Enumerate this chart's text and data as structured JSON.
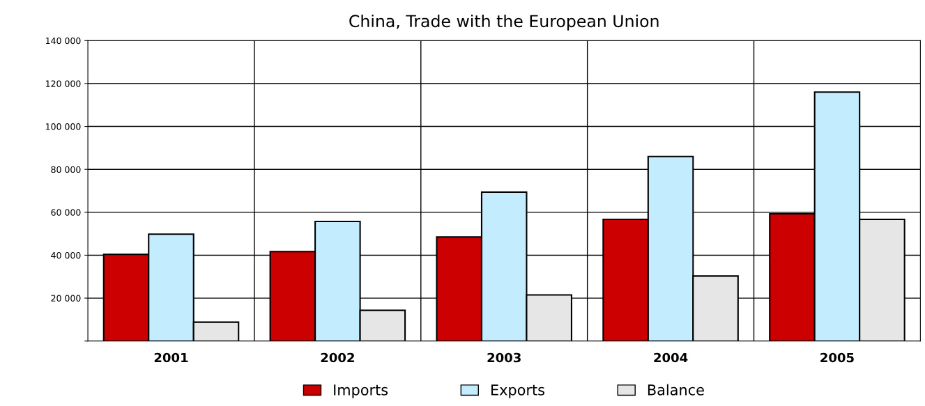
{
  "chart_data": {
    "type": "bar",
    "title": "China, Trade with the European Union",
    "categories": [
      "2001",
      "2002",
      "2003",
      "2004",
      "2005"
    ],
    "series": [
      {
        "name": "Imports",
        "color": "#cc0000",
        "values": [
          40400,
          41700,
          48500,
          56700,
          59300
        ]
      },
      {
        "name": "Exports",
        "color": "#c4ecff",
        "values": [
          49800,
          55700,
          69400,
          86000,
          116000
        ]
      },
      {
        "name": "Balance",
        "color": "#e6e6e6",
        "values": [
          8800,
          14300,
          21500,
          30300,
          56700
        ]
      }
    ],
    "ylim": [
      0,
      140000
    ],
    "yticks": [
      {
        "value": 0,
        "label": null
      },
      {
        "value": 20000,
        "label": "20 000"
      },
      {
        "value": 40000,
        "label": "40 000"
      },
      {
        "value": 60000,
        "label": "60 000"
      },
      {
        "value": 80000,
        "label": "80 000"
      },
      {
        "value": 100000,
        "label": "100 000"
      },
      {
        "value": 120000,
        "label": "120 000"
      },
      {
        "value": 140000,
        "label": "140 000"
      }
    ],
    "grid": true,
    "legend": "bottom"
  }
}
